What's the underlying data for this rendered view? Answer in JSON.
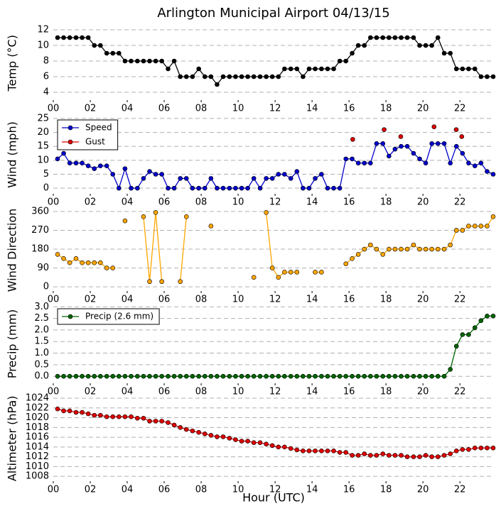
{
  "chart_data": [
    {
      "type": "line",
      "title": "Arlington Municipal Airport 04/13/15",
      "ylabel": "Temp ($^\\circ$C)",
      "x": [
        0.23,
        0.56,
        0.89,
        1.23,
        1.56,
        1.89,
        2.22,
        2.55,
        2.89,
        3.22,
        3.55,
        3.88,
        4.21,
        4.55,
        4.88,
        5.21,
        5.54,
        5.87,
        6.21,
        6.54,
        6.87,
        7.2,
        7.53,
        7.87,
        8.2,
        8.53,
        8.86,
        9.19,
        9.53,
        9.86,
        10.19,
        10.52,
        10.85,
        11.19,
        11.52,
        11.85,
        12.18,
        12.51,
        12.85,
        13.18,
        13.51,
        13.84,
        14.17,
        14.51,
        14.84,
        15.17,
        15.5,
        15.83,
        16.17,
        16.5,
        16.83,
        17.16,
        17.49,
        17.83,
        18.16,
        18.49,
        18.82,
        19.15,
        19.49,
        19.82,
        20.15,
        20.48,
        20.81,
        21.15,
        21.48,
        21.81,
        22.14,
        22.47,
        22.81,
        23.14,
        23.47,
        23.8
      ],
      "series": [
        {
          "color": "#000000",
          "values": [
            11,
            11,
            11,
            11,
            11,
            11,
            10,
            10,
            9,
            9,
            9,
            8,
            8,
            8,
            8,
            8,
            8,
            8,
            7,
            8,
            6,
            6,
            6,
            7,
            6,
            6,
            5,
            6,
            6,
            6,
            6,
            6,
            6,
            6,
            6,
            6,
            6,
            7,
            7,
            7,
            6,
            7,
            7,
            7,
            7,
            7,
            8,
            8,
            9,
            10,
            10,
            11,
            11,
            11,
            11,
            11,
            11,
            11,
            11,
            10,
            10,
            10,
            11,
            9,
            9,
            7,
            7,
            7,
            7,
            6,
            6,
            6
          ]
        }
      ],
      "xlim": [
        0,
        23.8
      ],
      "xticks": [
        {
          "value": 0,
          "label": "00"
        },
        {
          "value": 2,
          "label": "02"
        },
        {
          "value": 4,
          "label": "04"
        },
        {
          "value": 6,
          "label": "06"
        },
        {
          "value": 8,
          "label": "08"
        },
        10,
        12,
        14,
        16,
        18,
        20,
        22
      ],
      "ylim": [
        3,
        12.5
      ],
      "yticks": [
        4,
        6,
        8,
        10,
        12
      ],
      "grid": true
    },
    {
      "type": "line",
      "ylabel": "Wind (mph)",
      "legend": "upper left",
      "x": [
        0.23,
        0.56,
        0.89,
        1.23,
        1.56,
        1.89,
        2.22,
        2.55,
        2.89,
        3.22,
        3.55,
        3.88,
        4.21,
        4.55,
        4.88,
        5.21,
        5.54,
        5.87,
        6.21,
        6.54,
        6.87,
        7.2,
        7.53,
        7.87,
        8.2,
        8.53,
        8.86,
        9.19,
        9.53,
        9.86,
        10.19,
        10.52,
        10.85,
        11.19,
        11.52,
        11.85,
        12.18,
        12.51,
        12.85,
        13.18,
        13.51,
        13.84,
        14.17,
        14.51,
        14.84,
        15.17,
        15.5,
        15.83,
        16.17,
        16.5,
        16.83,
        17.16,
        17.49,
        17.83,
        18.16,
        18.49,
        18.82,
        19.15,
        19.49,
        19.82,
        20.15,
        20.48,
        20.81,
        21.15,
        21.48,
        21.81,
        22.14,
        22.47,
        22.81,
        23.14,
        23.47,
        23.8
      ],
      "series": [
        {
          "name": "Speed",
          "color": "#0000cc",
          "values": [
            10.5,
            12.5,
            9,
            9,
            9,
            8,
            7,
            8,
            8,
            5,
            0,
            7,
            0,
            0,
            3.5,
            6,
            5,
            5,
            0,
            0,
            3.5,
            3.5,
            0,
            0,
            0,
            3.5,
            0,
            0,
            0,
            0,
            0,
            0,
            3.5,
            0,
            3.5,
            3.5,
            5,
            5,
            3.5,
            6,
            0,
            0,
            3.5,
            5,
            0,
            0,
            0,
            10.5,
            10.5,
            9,
            9,
            9,
            16,
            16,
            11.5,
            14,
            15,
            15,
            12.5,
            10.5,
            9,
            16,
            16,
            16,
            9,
            15,
            12.5,
            9,
            8,
            9,
            6,
            5
          ]
        },
        {
          "name": "Gust",
          "color": "#dd0000",
          "linestyle": "none",
          "x": [
            16.2,
            17.9,
            18.8,
            20.6,
            21.8,
            22.1
          ],
          "values": [
            17.5,
            21,
            18.5,
            22,
            21,
            18.5
          ]
        }
      ],
      "xlim": [
        0,
        23.8
      ],
      "xticks": [
        {
          "value": 0,
          "label": "00"
        },
        {
          "value": 2,
          "label": "02"
        },
        {
          "value": 4,
          "label": "04"
        },
        {
          "value": 6,
          "label": "06"
        },
        {
          "value": 8,
          "label": "08"
        },
        10,
        12,
        14,
        16,
        18,
        20,
        22
      ],
      "ylim": [
        -2,
        26
      ],
      "yticks": [
        0,
        5,
        10,
        15,
        20,
        25
      ],
      "grid": true
    },
    {
      "type": "line",
      "ylabel": "Wind Direction",
      "x": [
        0.23,
        0.56,
        0.89,
        1.23,
        1.56,
        1.89,
        2.22,
        2.55,
        2.89,
        3.22,
        3.55,
        3.88,
        4.21,
        4.55,
        4.88,
        5.21,
        5.54,
        5.87,
        6.21,
        6.54,
        6.87,
        7.2,
        7.53,
        7.87,
        8.2,
        8.53,
        8.86,
        9.19,
        9.53,
        9.86,
        10.19,
        10.52,
        10.85,
        11.19,
        11.52,
        11.85,
        12.18,
        12.51,
        12.85,
        13.18,
        13.51,
        13.84,
        14.17,
        14.51,
        14.84,
        15.17,
        15.5,
        15.83,
        16.17,
        16.5,
        16.83,
        17.16,
        17.49,
        17.83,
        18.16,
        18.49,
        18.82,
        19.15,
        19.49,
        19.82,
        20.15,
        20.48,
        20.81,
        21.15,
        21.48,
        21.81,
        22.14,
        22.47,
        22.81,
        23.14,
        23.47,
        23.8
      ],
      "series": [
        {
          "color": "#ffa500",
          "values": [
            155,
            135,
            115,
            135,
            115,
            115,
            115,
            115,
            90,
            90,
            null,
            315,
            null,
            null,
            335,
            25,
            355,
            25,
            null,
            null,
            25,
            335,
            null,
            null,
            null,
            290,
            null,
            null,
            null,
            null,
            null,
            null,
            45,
            null,
            355,
            90,
            45,
            70,
            70,
            70,
            null,
            null,
            70,
            70,
            null,
            null,
            null,
            110,
            135,
            155,
            180,
            200,
            180,
            155,
            180,
            180,
            180,
            180,
            200,
            180,
            180,
            180,
            180,
            180,
            200,
            270,
            270,
            290,
            290,
            290,
            290,
            335
          ]
        }
      ],
      "xlim": [
        0,
        23.8
      ],
      "xticks": [
        {
          "value": 0,
          "label": "00"
        },
        {
          "value": 2,
          "label": "02"
        },
        {
          "value": 4,
          "label": "04"
        },
        {
          "value": 6,
          "label": "06"
        },
        {
          "value": 8,
          "label": "08"
        },
        10,
        12,
        14,
        16,
        18,
        20,
        22
      ],
      "ylim": [
        -20,
        370
      ],
      "yticks": [
        0,
        90,
        180,
        270,
        360
      ],
      "grid": true
    },
    {
      "type": "line",
      "ylabel": "Precip (mm)",
      "legend": "upper left",
      "x": [
        0.23,
        0.56,
        0.89,
        1.23,
        1.56,
        1.89,
        2.22,
        2.55,
        2.89,
        3.22,
        3.55,
        3.88,
        4.21,
        4.55,
        4.88,
        5.21,
        5.54,
        5.87,
        6.21,
        6.54,
        6.87,
        7.2,
        7.53,
        7.87,
        8.2,
        8.53,
        8.86,
        9.19,
        9.53,
        9.86,
        10.19,
        10.52,
        10.85,
        11.19,
        11.52,
        11.85,
        12.18,
        12.51,
        12.85,
        13.18,
        13.51,
        13.84,
        14.17,
        14.51,
        14.84,
        15.17,
        15.5,
        15.83,
        16.17,
        16.5,
        16.83,
        17.16,
        17.49,
        17.83,
        18.16,
        18.49,
        18.82,
        19.15,
        19.49,
        19.82,
        20.15,
        20.48,
        20.81,
        21.15,
        21.48,
        21.81,
        22.14,
        22.47,
        22.81,
        23.14,
        23.47,
        23.8
      ],
      "series": [
        {
          "name": "Precip (2.6 mm)",
          "color": "#006400",
          "values": [
            0,
            0,
            0,
            0,
            0,
            0,
            0,
            0,
            0,
            0,
            0,
            0,
            0,
            0,
            0,
            0,
            0,
            0,
            0,
            0,
            0,
            0,
            0,
            0,
            0,
            0,
            0,
            0,
            0,
            0,
            0,
            0,
            0,
            0,
            0,
            0,
            0,
            0,
            0,
            0,
            0,
            0,
            0,
            0,
            0,
            0,
            0,
            0,
            0,
            0,
            0,
            0,
            0,
            0,
            0,
            0,
            0,
            0,
            0,
            0,
            0,
            0,
            0,
            0,
            0.3,
            1.3,
            1.8,
            1.8,
            2.1,
            2.4,
            2.6,
            2.6
          ]
        }
      ],
      "xlim": [
        0,
        23.8
      ],
      "xticks": [
        {
          "value": 0,
          "label": "00"
        },
        {
          "value": 2,
          "label": "02"
        },
        {
          "value": 4,
          "label": "04"
        },
        {
          "value": 6,
          "label": "06"
        },
        {
          "value": 8,
          "label": "08"
        },
        10,
        12,
        14,
        16,
        18,
        20,
        22
      ],
      "ylim": [
        -0.3,
        3.1
      ],
      "yticks": [
        {
          "value": 0,
          "label": "0.0"
        },
        0.5,
        {
          "value": 1,
          "label": "1.0"
        },
        1.5,
        {
          "value": 2,
          "label": "2.0"
        },
        2.5,
        {
          "value": 3,
          "label": "3.0"
        }
      ],
      "grid": true
    },
    {
      "type": "line",
      "ylabel": "Altimeter (hPa)",
      "xlabel": "Hour (UTC)",
      "x": [
        0.23,
        0.56,
        0.89,
        1.23,
        1.56,
        1.89,
        2.22,
        2.55,
        2.89,
        3.22,
        3.55,
        3.88,
        4.21,
        4.55,
        4.88,
        5.21,
        5.54,
        5.87,
        6.21,
        6.54,
        6.87,
        7.2,
        7.53,
        7.87,
        8.2,
        8.53,
        8.86,
        9.19,
        9.53,
        9.86,
        10.19,
        10.52,
        10.85,
        11.19,
        11.52,
        11.85,
        12.18,
        12.51,
        12.85,
        13.18,
        13.51,
        13.84,
        14.17,
        14.51,
        14.84,
        15.17,
        15.5,
        15.83,
        16.17,
        16.5,
        16.83,
        17.16,
        17.49,
        17.83,
        18.16,
        18.49,
        18.82,
        19.15,
        19.49,
        19.82,
        20.15,
        20.48,
        20.81,
        21.15,
        21.48,
        21.81,
        22.14,
        22.47,
        22.81,
        23.14,
        23.47,
        23.8
      ],
      "series": [
        {
          "color": "#dd0000",
          "values": [
            1021.8,
            1021.4,
            1021.4,
            1021.1,
            1021.1,
            1020.8,
            1020.5,
            1020.5,
            1020.2,
            1020.2,
            1020.2,
            1020.2,
            1020.2,
            1019.9,
            1019.9,
            1019.3,
            1019.3,
            1019.3,
            1019,
            1018.5,
            1018,
            1017.6,
            1017.3,
            1017,
            1016.7,
            1016.4,
            1016.1,
            1016.1,
            1015.8,
            1015.5,
            1015.2,
            1015.2,
            1014.9,
            1014.9,
            1014.6,
            1014.3,
            1014,
            1014,
            1013.7,
            1013.4,
            1013.2,
            1013.2,
            1013.2,
            1013.2,
            1013.2,
            1013.2,
            1012.9,
            1012.9,
            1012.3,
            1012.3,
            1012.6,
            1012.3,
            1012.3,
            1012.6,
            1012.3,
            1012.3,
            1012.3,
            1012,
            1012,
            1012,
            1012.3,
            1012,
            1012,
            1012.3,
            1012.6,
            1013.2,
            1013.5,
            1013.5,
            1013.8,
            1013.8,
            1013.8,
            1013.8
          ]
        }
      ],
      "xlim": [
        0,
        23.8
      ],
      "xticks": [
        {
          "value": 0,
          "label": "00"
        },
        {
          "value": 2,
          "label": "02"
        },
        {
          "value": 4,
          "label": "04"
        },
        {
          "value": 6,
          "label": "06"
        },
        {
          "value": 8,
          "label": "08"
        },
        10,
        12,
        14,
        16,
        18,
        20,
        22
      ],
      "ylim": [
        1007,
        1024.5
      ],
      "yticks": [
        1008,
        1010,
        1012,
        1014,
        1016,
        1018,
        1020,
        1022,
        1024
      ],
      "grid": true
    }
  ]
}
